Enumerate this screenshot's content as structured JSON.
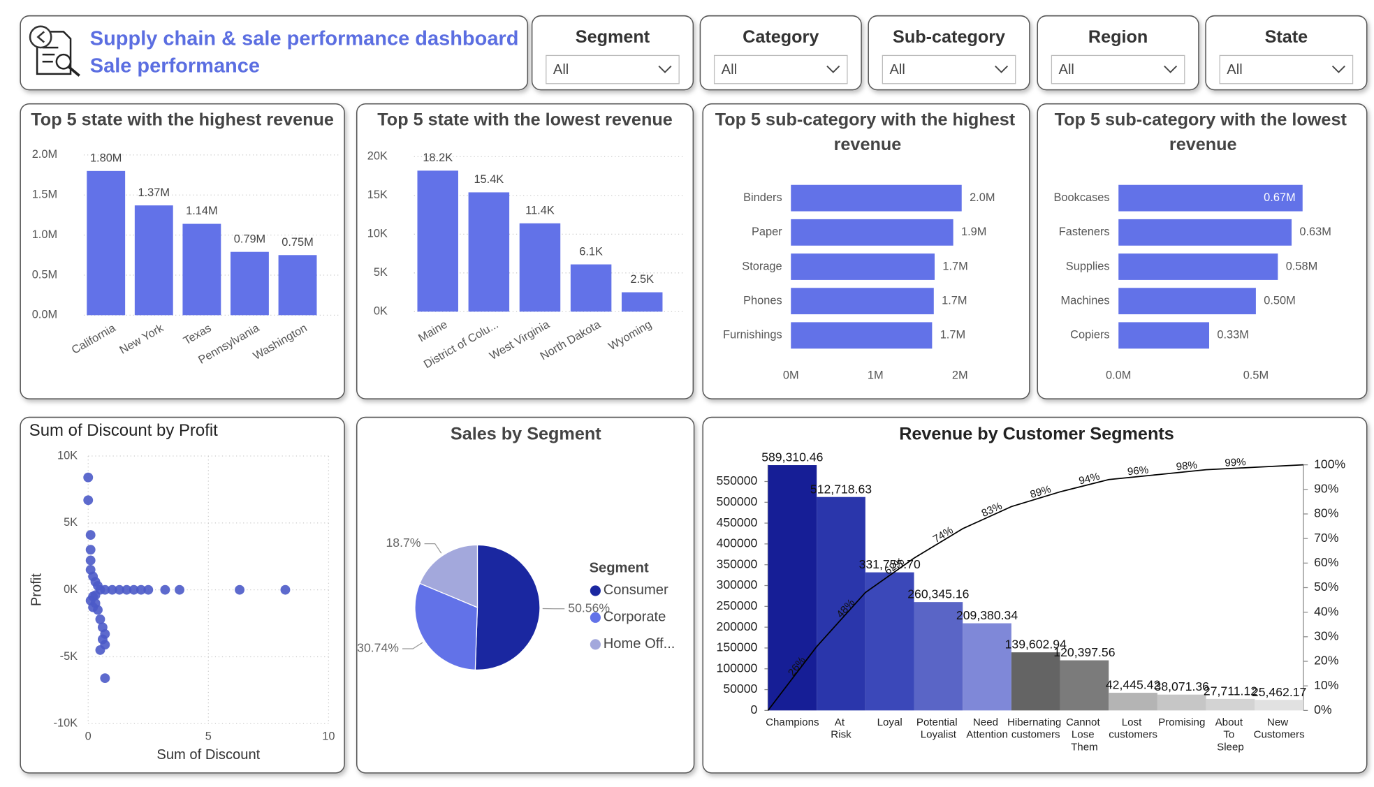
{
  "header": {
    "title": "Supply chain & sale performance dashboard",
    "subtitle": "Sale performance"
  },
  "slicers": [
    {
      "label": "Segment",
      "value": "All"
    },
    {
      "label": "Category",
      "value": "All"
    },
    {
      "label": "Sub-category",
      "value": "All"
    },
    {
      "label": "Region",
      "value": "All"
    },
    {
      "label": "State",
      "value": "All"
    }
  ],
  "chart_data": [
    {
      "type": "bar",
      "title": "Top 5 state with the highest revenue",
      "categories": [
        "California",
        "New York",
        "Texas",
        "Pennsylvania",
        "Washington"
      ],
      "values": [
        1800000,
        1370000,
        1140000,
        790000,
        750000
      ],
      "value_labels": [
        "1.80M",
        "1.37M",
        "1.14M",
        "0.79M",
        "0.75M"
      ],
      "color": "#6272e8",
      "grid": true,
      "ylim": [
        0,
        2000000
      ],
      "yticks": [
        {
          "value": 0,
          "label": "0.0M"
        },
        {
          "value": 500000,
          "label": "0.5M"
        },
        {
          "value": 1000000,
          "label": "1.0M"
        },
        {
          "value": 1500000,
          "label": "1.5M"
        },
        {
          "value": 2000000,
          "label": "2.0M"
        }
      ]
    },
    {
      "type": "bar",
      "title": "Top 5 state with the lowest revenue",
      "categories": [
        "Maine",
        "District of Colu...",
        "West Virginia",
        "North Dakota",
        "Wyoming"
      ],
      "values": [
        18200,
        15400,
        11400,
        6100,
        2500
      ],
      "value_labels": [
        "18.2K",
        "15.4K",
        "11.4K",
        "6.1K",
        "2.5K"
      ],
      "color": "#6272e8",
      "grid": true,
      "ylim": [
        0,
        20000
      ],
      "yticks": [
        {
          "value": 0,
          "label": "0K"
        },
        {
          "value": 5000,
          "label": "5K"
        },
        {
          "value": 10000,
          "label": "10K"
        },
        {
          "value": 15000,
          "label": "15K"
        },
        {
          "value": 20000,
          "label": "20K"
        }
      ]
    },
    {
      "type": "hbar",
      "title": "Top 5 sub-category with the highest revenue",
      "categories": [
        "Binders",
        "Paper",
        "Storage",
        "Phones",
        "Furnishings"
      ],
      "values": [
        2020000,
        1920000,
        1700000,
        1690000,
        1670000
      ],
      "value_labels": [
        "2.0M",
        "1.9M",
        "1.7M",
        "1.7M",
        "1.7M"
      ],
      "color": "#6272e8",
      "xlim": [
        0,
        2500000
      ],
      "xticks": [
        {
          "value": 0,
          "label": "0M"
        },
        {
          "value": 1000000,
          "label": "1M"
        },
        {
          "value": 2000000,
          "label": "2M"
        }
      ]
    },
    {
      "type": "hbar",
      "title": "Top 5 sub-category with the lowest revenue",
      "categories": [
        "Bookcases",
        "Fasteners",
        "Supplies",
        "Machines",
        "Copiers"
      ],
      "values": [
        670000,
        630000,
        580000,
        500000,
        330000
      ],
      "value_labels": [
        "0.67M",
        "0.63M",
        "0.58M",
        "0.50M",
        "0.33M"
      ],
      "color": "#6272e8",
      "xlim": [
        0,
        800000
      ],
      "xticks": [
        {
          "value": 0,
          "label": "0.0M"
        },
        {
          "value": 500000,
          "label": "0.5M"
        }
      ]
    },
    {
      "type": "scatter",
      "title": "Sum of Discount by Profit",
      "xlabel": "Sum of Discount",
      "ylabel": "Profit",
      "color": "#4b5ac8",
      "grid": true,
      "xlim": [
        0,
        10
      ],
      "xticks": [
        0,
        5,
        10
      ],
      "ylim": [
        -10000,
        10000
      ],
      "yticks": [
        {
          "value": -10000,
          "label": "-10K"
        },
        {
          "value": -5000,
          "label": "-5K"
        },
        {
          "value": 0,
          "label": "0K"
        },
        {
          "value": 5000,
          "label": "5K"
        },
        {
          "value": 10000,
          "label": "10K"
        }
      ],
      "x": [
        0.0,
        0.0,
        0.1,
        0.1,
        0.1,
        0.1,
        0.2,
        0.3,
        0.4,
        0.5,
        0.7,
        1.0,
        1.3,
        1.6,
        1.9,
        2.2,
        2.5,
        3.2,
        3.8,
        6.3,
        8.2,
        0.2,
        0.3,
        0.4,
        0.5,
        0.6,
        0.7,
        0.6,
        0.7,
        0.5,
        0.7,
        0.1,
        0.2,
        0.3
      ],
      "y": [
        8400,
        6700,
        4100,
        3000,
        2200,
        1500,
        1000,
        600,
        300,
        0,
        0,
        0,
        0,
        0,
        0,
        0,
        0,
        0,
        0,
        0,
        0,
        -500,
        -1000,
        -1500,
        -2200,
        -2800,
        -3300,
        -3700,
        -4100,
        -4500,
        -6600,
        -800,
        -1300,
        -400
      ]
    },
    {
      "type": "pie",
      "title": "Sales by Segment",
      "legend_title": "Segment",
      "categories": [
        "Consumer",
        "Corporate",
        "Home Off..."
      ],
      "values": [
        50.56,
        30.74,
        18.7
      ],
      "value_labels": [
        "50.56%",
        "30.74%",
        "18.7%"
      ],
      "colors": [
        "#1a27a0",
        "#6272e8",
        "#a3a8dc"
      ]
    },
    {
      "type": "combo",
      "title": "Revenue by Customer Segments",
      "categories": [
        "Champions",
        "At Risk",
        "Loyal",
        "Potential Loyalist",
        "Need Attention",
        "Hibernating customers",
        "Cannot Lose Them",
        "Lost customers",
        "Promising",
        "About To Sleep",
        "New Customers"
      ],
      "values": [
        589310.46,
        512718.63,
        331755.7,
        260345.16,
        209380.34,
        139602.94,
        120397.56,
        42445.42,
        38071.36,
        27711.12,
        25462.17
      ],
      "value_labels": [
        "589,310.46",
        "512,718.63",
        "331,755.70",
        "260,345.16",
        "209,380.34",
        "139,602.94",
        "120,397.56",
        "42,445.42",
        "38,071.36",
        "27,711.12",
        "25,462.17"
      ],
      "colors": [
        "#161e96",
        "#2a36ab",
        "#3b48b9",
        "#5a65c6",
        "#7f88d8",
        "#646464",
        "#7b7b7b",
        "#b4b4b4",
        "#c6c6c6",
        "#d3d3d3",
        "#e1e1e1"
      ],
      "ylim": [
        0,
        590000
      ],
      "yticks": [
        0,
        50000,
        100000,
        150000,
        200000,
        250000,
        300000,
        350000,
        400000,
        450000,
        500000,
        550000
      ],
      "line": {
        "axis": "y2",
        "color": "#000000",
        "values": [
          26,
          48,
          62,
          74,
          83,
          89,
          94,
          96,
          98,
          99,
          100
        ],
        "value_labels": [
          "26%",
          "48%",
          "62%",
          "74%",
          "83%",
          "89%",
          "94%",
          "96%",
          "98%",
          "99%",
          null
        ]
      },
      "y2lim": [
        0,
        100
      ],
      "y2ticks": [
        {
          "value": 0,
          "label": "0%"
        },
        {
          "value": 10,
          "label": "10%"
        },
        {
          "value": 20,
          "label": "20%"
        },
        {
          "value": 30,
          "label": "30%"
        },
        {
          "value": 40,
          "label": "40%"
        },
        {
          "value": 50,
          "label": "50%"
        },
        {
          "value": 60,
          "label": "60%"
        },
        {
          "value": 70,
          "label": "70%"
        },
        {
          "value": 80,
          "label": "80%"
        },
        {
          "value": 90,
          "label": "90%"
        },
        {
          "value": 100,
          "label": "100%"
        }
      ]
    }
  ]
}
